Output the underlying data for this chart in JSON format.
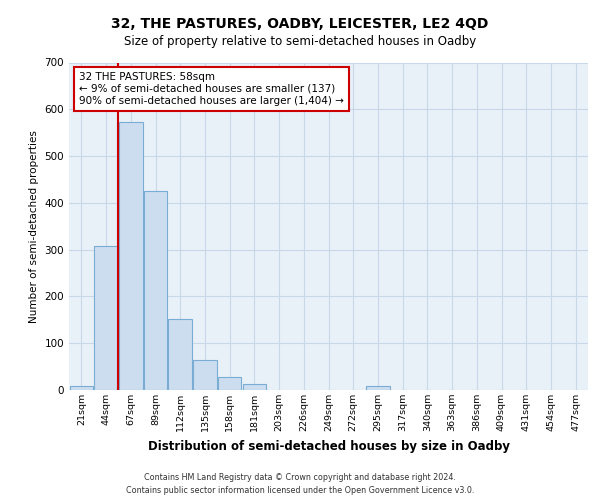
{
  "title_line1": "32, THE PASTURES, OADBY, LEICESTER, LE2 4QD",
  "title_line2": "Size of property relative to semi-detached houses in Oadby",
  "xlabel": "Distribution of semi-detached houses by size in Oadby",
  "ylabel": "Number of semi-detached properties",
  "bins": [
    "21sqm",
    "44sqm",
    "67sqm",
    "89sqm",
    "112sqm",
    "135sqm",
    "158sqm",
    "181sqm",
    "203sqm",
    "226sqm",
    "249sqm",
    "272sqm",
    "295sqm",
    "317sqm",
    "340sqm",
    "363sqm",
    "386sqm",
    "409sqm",
    "431sqm",
    "454sqm",
    "477sqm"
  ],
  "values": [
    8,
    307,
    573,
    425,
    152,
    65,
    28,
    12,
    0,
    0,
    0,
    0,
    8,
    0,
    0,
    0,
    0,
    0,
    0,
    0,
    0
  ],
  "bar_color": "#ccddf0",
  "bar_edge_color": "#7aadd4",
  "bar_edge_width": 0.8,
  "grid_color": "#c8d8e8",
  "background_color": "#e8f0f8",
  "red_line_color": "#cc0000",
  "red_line_x": 1.5,
  "annotation_text": "32 THE PASTURES: 58sqm\n← 9% of semi-detached houses are smaller (137)\n90% of semi-detached houses are larger (1,404) →",
  "annotation_box_color": "#ffffff",
  "annotation_box_edge": "#cc0000",
  "ylim": [
    0,
    700
  ],
  "yticks": [
    0,
    100,
    200,
    300,
    400,
    500,
    600,
    700
  ],
  "footer_line1": "Contains HM Land Registry data © Crown copyright and database right 2024.",
  "footer_line2": "Contains public sector information licensed under the Open Government Licence v3.0."
}
